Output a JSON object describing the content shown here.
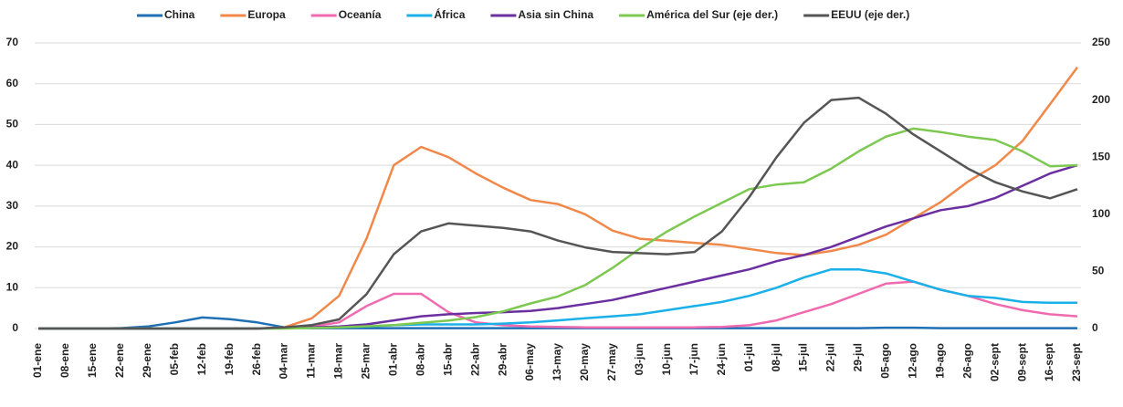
{
  "chart_data": {
    "type": "line",
    "categories": [
      "01-ene",
      "08-ene",
      "15-ene",
      "22-ene",
      "29-ene",
      "05-feb",
      "12-feb",
      "19-feb",
      "26-feb",
      "04-mar",
      "11-mar",
      "18-mar",
      "25-mar",
      "01-abr",
      "08-abr",
      "15-abr",
      "22-abr",
      "29-abr",
      "06-may",
      "13-may",
      "20-may",
      "27-may",
      "03-jun",
      "10-jun",
      "17-jun",
      "24-jun",
      "01-jul",
      "08-jul",
      "15-jul",
      "22-jul",
      "29-jul",
      "05-ago",
      "12-ago",
      "19-ago",
      "26-ago",
      "02-sept",
      "09-sept",
      "16-sept",
      "23-sept"
    ],
    "series": [
      {
        "name": "China",
        "color": "#1f6fb5",
        "values": [
          0,
          0,
          0,
          0.1,
          0.5,
          1.5,
          2.7,
          2.3,
          1.5,
          0.3,
          0.1,
          0.1,
          0.1,
          0.1,
          0.1,
          0.1,
          0.1,
          0.1,
          0.1,
          0.1,
          0.1,
          0.1,
          0.1,
          0.1,
          0.1,
          0.1,
          0.1,
          0.1,
          0.1,
          0.1,
          0.1,
          0.2,
          0.2,
          0.1,
          0.1,
          0.1,
          0.1,
          0.1,
          0.1
        ]
      },
      {
        "name": "Europa",
        "color": "#f0884a",
        "values": [
          0,
          0,
          0,
          0,
          0,
          0,
          0,
          0,
          0,
          0.3,
          2.5,
          8,
          22,
          40,
          44.5,
          42,
          38,
          34.5,
          31.5,
          30.5,
          28,
          24,
          22,
          21.5,
          21,
          20.5,
          19.5,
          18.5,
          18,
          19,
          20.5,
          23,
          27,
          31,
          36,
          40,
          46,
          55,
          64
        ]
      },
      {
        "name": "Oceanía",
        "color": "#f06ab0",
        "values": [
          0,
          0,
          0,
          0,
          0,
          0,
          0,
          0,
          0,
          0.2,
          0.5,
          1.5,
          5.5,
          8.5,
          8.5,
          4,
          1.5,
          0.8,
          0.5,
          0.4,
          0.3,
          0.3,
          0.3,
          0.3,
          0.3,
          0.4,
          0.8,
          2,
          4,
          6,
          8.5,
          11,
          11.5,
          9.5,
          8,
          6,
          4.5,
          3.5,
          3
        ]
      },
      {
        "name": "África",
        "color": "#1ab0e8",
        "values": [
          0,
          0,
          0,
          0,
          0,
          0,
          0,
          0,
          0,
          0.1,
          0.2,
          0.3,
          0.5,
          0.8,
          1,
          1,
          1,
          1.2,
          1.5,
          2,
          2.5,
          3,
          3.5,
          4.5,
          5.5,
          6.5,
          8,
          10,
          12.5,
          14.5,
          14.5,
          13.5,
          11.5,
          9.5,
          8,
          7.5,
          6.5,
          6.3,
          6.3
        ]
      },
      {
        "name": "Asia sin China",
        "color": "#6b2fa0",
        "values": [
          0,
          0,
          0,
          0,
          0,
          0,
          0,
          0,
          0,
          0.2,
          0.3,
          0.5,
          1,
          2,
          3,
          3.5,
          3.8,
          4,
          4.3,
          5,
          6,
          7,
          8.5,
          10,
          11.5,
          13,
          14.5,
          16.5,
          18,
          20,
          22.5,
          25,
          27,
          29,
          30,
          32,
          35,
          38,
          40
        ]
      },
      {
        "name": "América del Sur (eje der.)",
        "color": "#7cc850",
        "axis": "y2",
        "values": [
          0,
          0,
          0,
          0,
          0,
          0,
          0,
          0,
          0,
          0,
          0.5,
          1,
          2,
          3,
          5,
          7,
          10,
          15,
          22,
          28,
          38,
          53,
          70,
          85,
          98,
          110,
          122,
          126,
          128,
          140,
          155,
          168,
          175,
          172,
          168,
          165,
          155,
          142,
          143
        ]
      },
      {
        "name": "EEUU (eje der.)",
        "color": "#555555",
        "axis": "y2",
        "values": [
          0,
          0,
          0,
          0,
          0,
          0,
          0,
          0,
          0,
          1,
          3,
          8,
          30,
          65,
          85,
          92,
          90,
          88,
          85,
          77,
          71,
          67,
          66,
          65,
          67,
          85,
          115,
          150,
          180,
          200,
          202,
          188,
          170,
          155,
          140,
          128,
          120,
          114,
          122
        ]
      }
    ],
    "ylim": [
      0,
      70
    ],
    "yticks": [
      0,
      10,
      20,
      30,
      40,
      50,
      60,
      70
    ],
    "y2lim": [
      0,
      250
    ],
    "y2ticks": [
      0,
      50,
      100,
      150,
      200,
      250
    ],
    "grid": true,
    "legend": "top"
  }
}
